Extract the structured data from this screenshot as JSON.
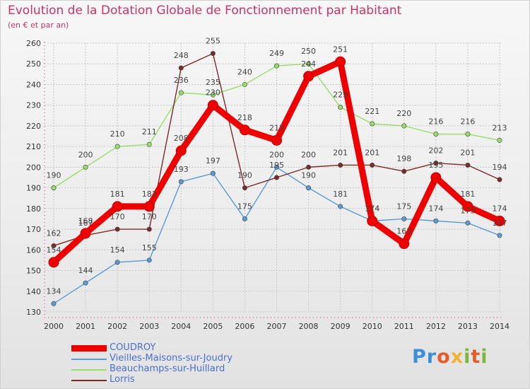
{
  "header": {
    "title": "Evolution de la Dotation Globale de Fonctionnement par Habitant",
    "subtitle": "(en € et par an)"
  },
  "logo": {
    "text": "Proxiti"
  },
  "colors": {
    "title": "#cc3366",
    "legend_text": "#4a6fd4",
    "axis_text": "#333333",
    "grid": "#c8c8c8",
    "value_label": "#444444"
  },
  "chart_data": {
    "type": "line",
    "title": "Evolution de la Dotation Globale de Fonctionnement par Habitant",
    "subtitle": "(en € et par an)",
    "xlabel": "",
    "ylabel": "",
    "x": [
      2000,
      2001,
      2002,
      2003,
      2004,
      2005,
      2006,
      2007,
      2008,
      2009,
      2010,
      2011,
      2012,
      2013,
      2014
    ],
    "ylim": [
      130,
      260
    ],
    "y_ticks": [
      130,
      140,
      150,
      160,
      170,
      180,
      190,
      200,
      210,
      220,
      230,
      240,
      250,
      260
    ],
    "grid": true,
    "legend_position": "bottom-left",
    "series": [
      {
        "name": "COUDROY",
        "color": "#ee0000",
        "values": [
          154,
          168,
          181,
          181,
          208,
          230,
          218,
          213,
          244,
          251,
          174,
          163,
          195,
          181,
          174
        ]
      },
      {
        "name": "Vieilles-Maisons-sur-Joudry",
        "color": "#5b9bd5",
        "values": [
          134,
          144,
          154,
          155,
          193,
          197,
          175,
          200,
          190,
          181,
          174,
          175,
          174,
          173,
          167
        ]
      },
      {
        "name": "Beauchamps-sur-Huillard",
        "color": "#99dd66",
        "values": [
          190,
          200,
          210,
          211,
          236,
          235,
          240,
          249,
          250,
          229,
          221,
          220,
          216,
          216,
          213
        ]
      },
      {
        "name": "Lorris",
        "color": "#7b2a2a",
        "values": [
          162,
          167,
          170,
          170,
          248,
          255,
          190,
          195,
          200,
          201,
          201,
          198,
          202,
          201,
          194
        ]
      }
    ]
  }
}
